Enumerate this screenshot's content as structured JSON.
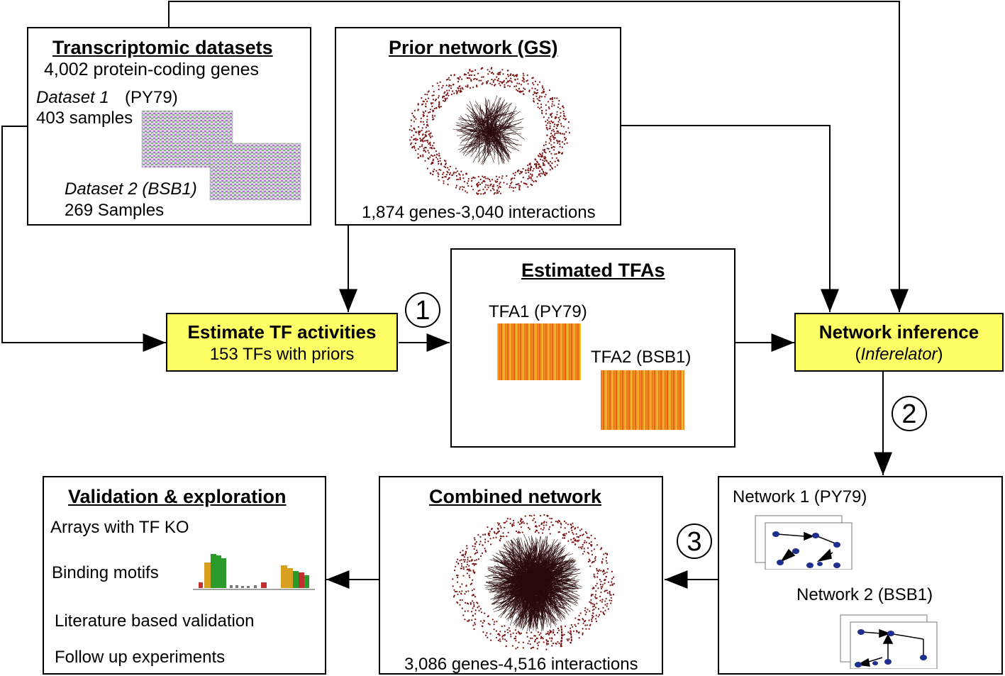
{
  "transcriptomic": {
    "title": "Transcriptomic datasets",
    "genes": "4,002 protein-coding genes",
    "dataset1_name": "Dataset 1",
    "dataset1_strain": "(PY79)",
    "dataset1_samples": "403 samples",
    "dataset2_name": "Dataset 2 (BSB1)",
    "dataset2_samples": "269 Samples"
  },
  "prior": {
    "title": "Prior network (GS)",
    "caption": "1,874 genes-3,040 interactions"
  },
  "estimate": {
    "title": "Estimate TF activities",
    "subtitle": "153 TFs with priors"
  },
  "tfas": {
    "title": "Estimated TFAs",
    "tfa1": "TFA1 (PY79)",
    "tfa2": "TFA2 (BSB1)"
  },
  "inference": {
    "title": "Network inference",
    "paren_open": "(",
    "tool": "Inferelator",
    "paren_close": ")"
  },
  "steps": [
    "1",
    "2",
    "3"
  ],
  "networks": {
    "net1": "Network 1 (PY79)",
    "net2": "Network 2 (BSB1)"
  },
  "combined": {
    "title": "Combined network",
    "caption": "3,086 genes-4,516 interactions"
  },
  "validation": {
    "title": "Validation & exploration",
    "items": [
      "Arrays with TF KO",
      "Binding motifs",
      "Literature based validation",
      "Follow up experiments"
    ]
  },
  "colors": {
    "highlight": "#ffff66",
    "network_dots": "#7a1010",
    "tfa_orange": "#f07a10",
    "node_blue": "#1f2f8f"
  }
}
